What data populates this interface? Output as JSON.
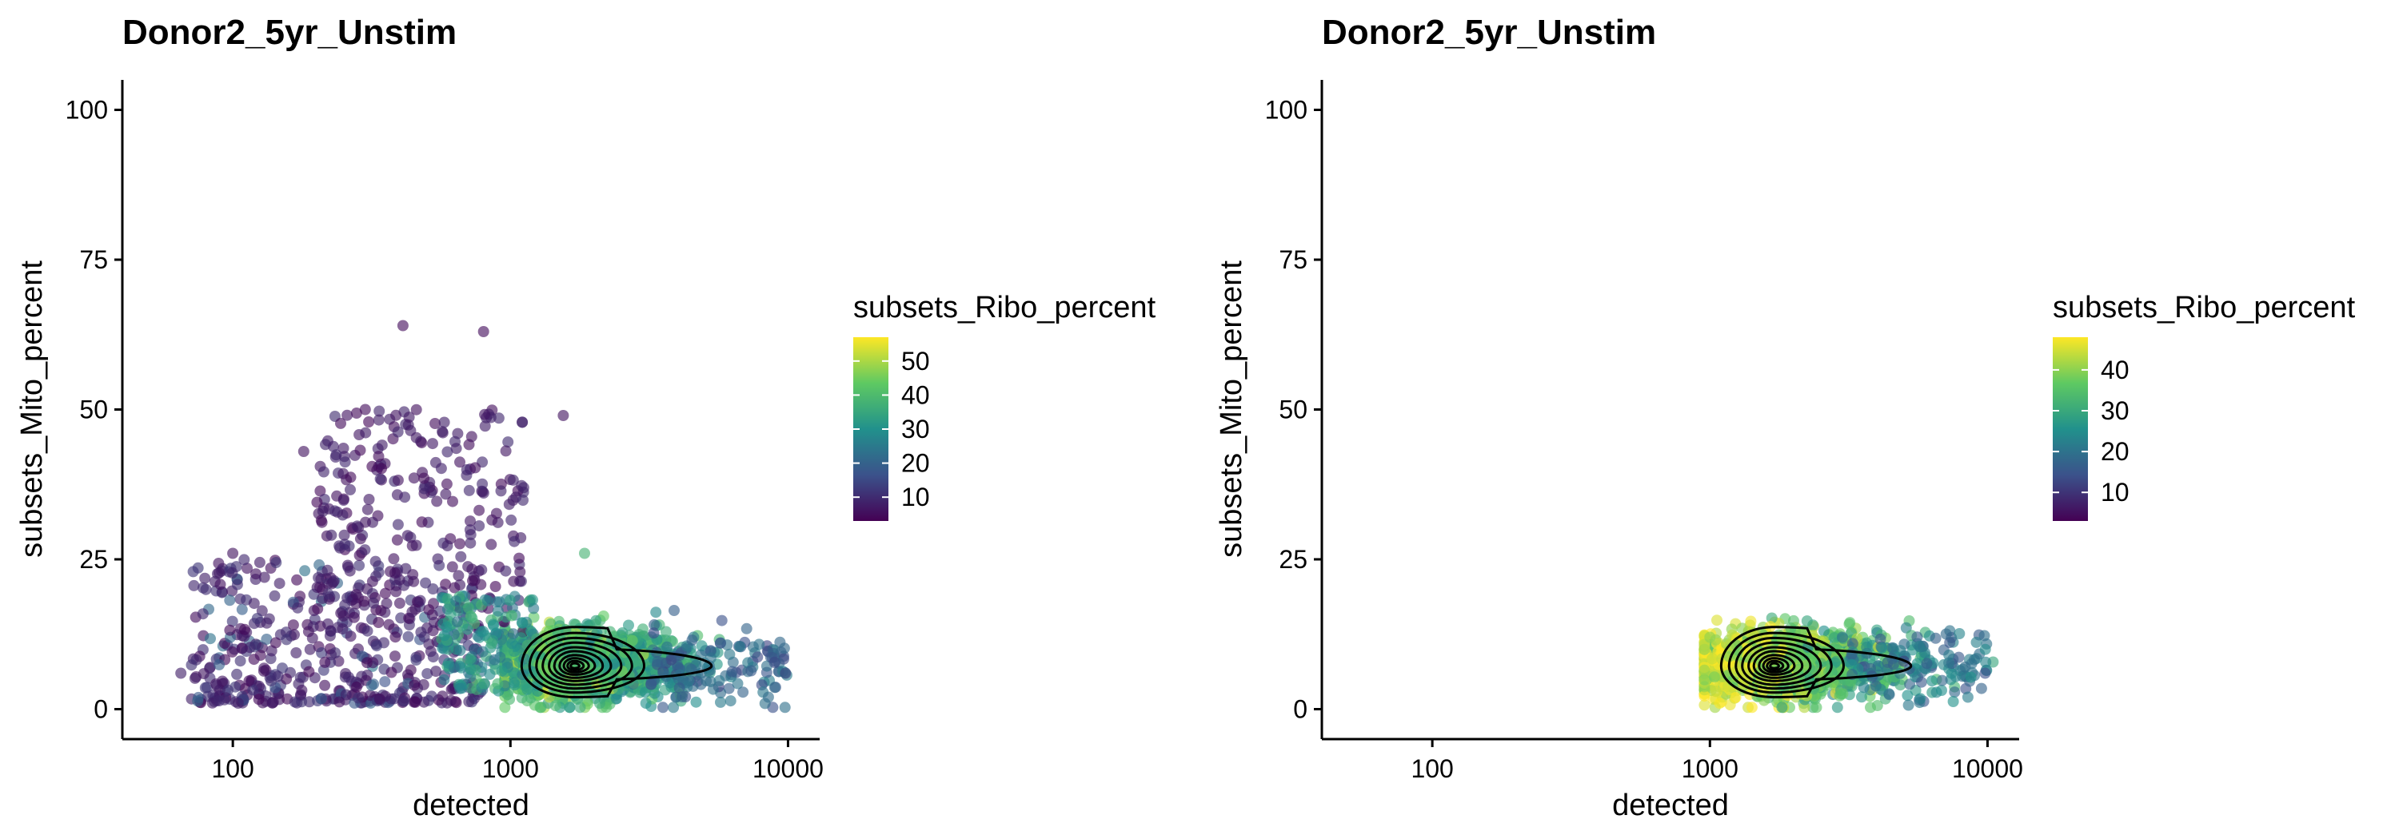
{
  "chart_data": [
    {
      "type": "scatter",
      "title": "Donor2_5yr_Unstim",
      "xlabel": "detected",
      "ylabel": "subsets_Mito_percent",
      "x_scale": "log10",
      "xlim": [
        40,
        13000
      ],
      "ylim": [
        -5,
        105
      ],
      "x_ticks": [
        100,
        1000,
        10000
      ],
      "x_tick_labels": [
        "100",
        "1000",
        "10000"
      ],
      "y_ticks": [
        0,
        25,
        50,
        75,
        100
      ],
      "y_tick_labels": [
        "0",
        "25",
        "50",
        "75",
        "100"
      ],
      "grid": false,
      "overlay": "density contours (black) centered near detected ≈ 1700, Mito ≈ 7",
      "color_by": "subsets_Ribo_percent",
      "colormap": "viridis",
      "legend": {
        "title": "subsets_Ribo_percent",
        "range": [
          3,
          57
        ],
        "ticks": [
          10,
          20,
          30,
          40,
          50
        ],
        "tick_labels": [
          "10",
          "20",
          "30",
          "40",
          "50"
        ],
        "placement": "right"
      },
      "points_sample": [
        {
          "x": 65,
          "y": 6,
          "c": 8
        },
        {
          "x": 100,
          "y": 26,
          "c": 6
        },
        {
          "x": 130,
          "y": 22,
          "c": 7
        },
        {
          "x": 180,
          "y": 43,
          "c": 6
        },
        {
          "x": 300,
          "y": 50,
          "c": 5
        },
        {
          "x": 410,
          "y": 64,
          "c": 5
        },
        {
          "x": 800,
          "y": 63,
          "c": 5
        },
        {
          "x": 1550,
          "y": 49,
          "c": 6
        },
        {
          "x": 1850,
          "y": 26,
          "c": 38
        },
        {
          "x": 1700,
          "y": 7,
          "c": 40
        },
        {
          "x": 8500,
          "y": 2,
          "c": 22
        },
        {
          "x": 9800,
          "y": 6,
          "c": 14
        }
      ]
    },
    {
      "type": "scatter",
      "title": "Donor2_5yr_Unstim",
      "xlabel": "detected",
      "ylabel": "subsets_Mito_percent",
      "x_scale": "log10",
      "xlim": [
        40,
        13000
      ],
      "ylim": [
        -5,
        105
      ],
      "x_ticks": [
        100,
        1000,
        10000
      ],
      "x_tick_labels": [
        "100",
        "1000",
        "10000"
      ],
      "y_ticks": [
        0,
        25,
        50,
        75,
        100
      ],
      "y_tick_labels": [
        "0",
        "25",
        "50",
        "75",
        "100"
      ],
      "grid": false,
      "overlay": "density contours (black) centered near detected ≈ 1700, Mito ≈ 7",
      "color_by": "subsets_Ribo_percent",
      "colormap": "viridis",
      "legend": {
        "title": "subsets_Ribo_percent",
        "range": [
          3,
          48
        ],
        "ticks": [
          10,
          20,
          30,
          40
        ],
        "tick_labels": [
          "10",
          "20",
          "30",
          "40"
        ],
        "placement": "right"
      },
      "points_sample": [
        {
          "x": 1000,
          "y": 12,
          "c": 40
        },
        {
          "x": 1050,
          "y": 3,
          "c": 44
        },
        {
          "x": 1700,
          "y": 7,
          "c": 38
        },
        {
          "x": 3000,
          "y": 12,
          "c": 20
        },
        {
          "x": 5000,
          "y": 8,
          "c": 12
        },
        {
          "x": 8500,
          "y": 2,
          "c": 22
        },
        {
          "x": 9800,
          "y": 6,
          "c": 14
        }
      ]
    }
  ]
}
